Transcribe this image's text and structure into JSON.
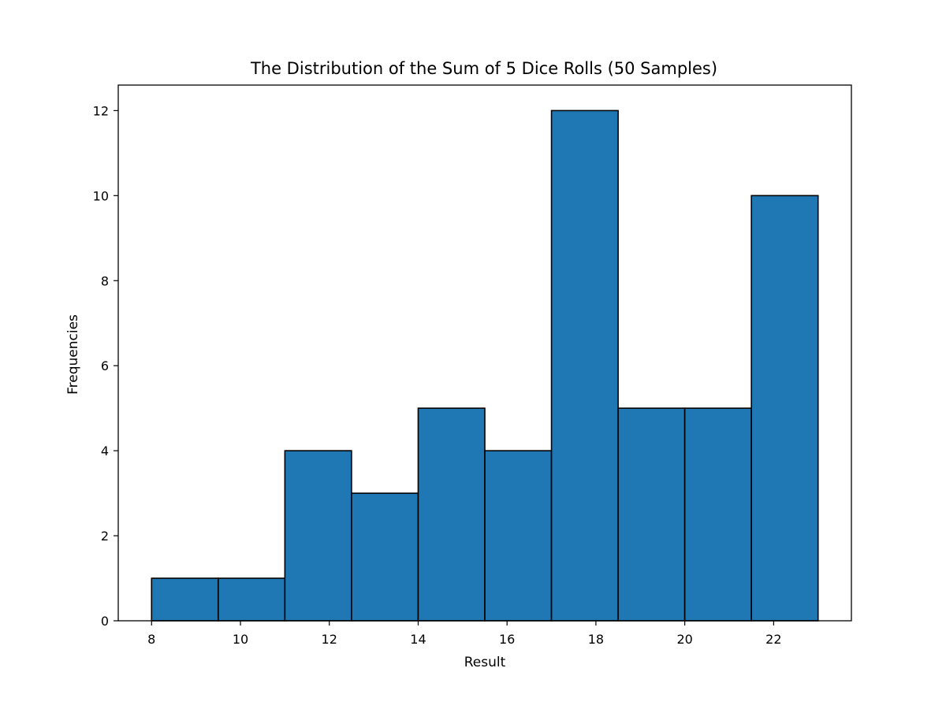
{
  "chart_data": {
    "type": "bar",
    "subtype": "histogram",
    "title": "The Distribution of the Sum of 5 Dice Rolls (50 Samples)",
    "xlabel": "Result",
    "ylabel": "Frequencies",
    "bin_edges": [
      8,
      9.5,
      11,
      12.5,
      14,
      15.5,
      17,
      18.5,
      20,
      21.5,
      23
    ],
    "values": [
      1,
      1,
      4,
      3,
      5,
      4,
      12,
      5,
      5,
      10
    ],
    "xlim": [
      7.25,
      23.75
    ],
    "ylim": [
      0,
      12.6
    ],
    "xticks": [
      8,
      10,
      12,
      14,
      16,
      18,
      20,
      22
    ],
    "yticks": [
      0,
      2,
      4,
      6,
      8,
      10,
      12
    ],
    "grid": false,
    "legend": "none",
    "colors": {
      "bar_fill": "#1f77b4",
      "bar_edge": "#000000",
      "axes": "#000000",
      "background": "#ffffff"
    }
  }
}
